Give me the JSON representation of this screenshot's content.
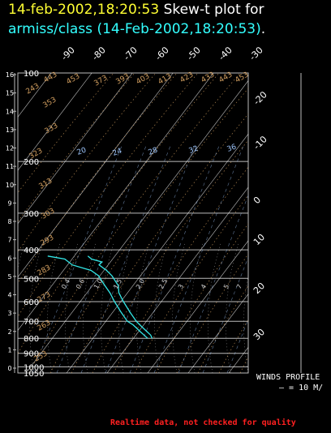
{
  "title": {
    "timestamp": "14-feb-2002,18:20:53",
    "text": "Skew-t plot for",
    "source": "armiss/class (14-Feb-2002,18:20:53)",
    "period": "."
  },
  "winds": {
    "label": "WINDS PROFILE",
    "scale": "— = 10 M/"
  },
  "footer": "Realtime data, not checked for quality",
  "colors": {
    "grid": "#bbbbbb",
    "isotherm": "#ffffff",
    "dry_adiabat": "#d4a060",
    "mixing_ratio": "#a0c8ff",
    "moist_adiabat": "#ffffff",
    "profile": "#33e8e8",
    "title_time": "#ffff33",
    "title_source": "#33ffff",
    "footer": "#ff2020"
  },
  "chart_data": {
    "type": "line",
    "title": "Skew-t plot for armiss/class (14-Feb-2002,18:20:53).",
    "pressure_levels": [
      100,
      200,
      300,
      400,
      500,
      600,
      700,
      800,
      900,
      1000,
      1050
    ],
    "height_km_ticks": [
      0,
      1,
      2,
      3,
      4,
      5,
      6,
      7,
      8,
      9,
      10,
      11,
      12,
      13,
      14,
      15,
      16
    ],
    "isotherm_labels": [
      "-90",
      "-80",
      "-70",
      "-60",
      "-50",
      "-40",
      "-30",
      "-20",
      "-10",
      "0",
      "10",
      "20",
      "30"
    ],
    "mixing_ratio_labels": [
      "20",
      "24",
      "28",
      "32",
      "36"
    ],
    "dry_adiabat_labels": [
      "443",
      "453",
      "373",
      "393",
      "403",
      "413",
      "423",
      "433",
      "443",
      "453",
      "353",
      "333",
      "323",
      "313",
      "303",
      "293",
      "283",
      "273",
      "263",
      "253",
      "243"
    ],
    "moist_adiabat_labels": [
      "0.4",
      "0.6",
      "1.0",
      "1.5",
      "2.0",
      "2.5",
      "3",
      "4",
      "5",
      "7"
    ],
    "ylim": [
      1050,
      100
    ],
    "series": [
      {
        "points": [
          {
            "p": 800,
            "t": 22
          },
          {
            "p": 780,
            "t": 21
          },
          {
            "p": 760,
            "t": 19
          },
          {
            "p": 740,
            "t": 17
          },
          {
            "p": 720,
            "t": 15
          },
          {
            "p": 700,
            "t": 13
          },
          {
            "p": 650,
            "t": 9
          },
          {
            "p": 600,
            "t": 5
          },
          {
            "p": 560,
            "t": 2
          },
          {
            "p": 530,
            "t": 1
          },
          {
            "p": 510,
            "t": -1
          },
          {
            "p": 490,
            "t": -3
          },
          {
            "p": 470,
            "t": -6
          },
          {
            "p": 450,
            "t": -10
          },
          {
            "p": 440,
            "t": -9
          },
          {
            "p": 430,
            "t": -14
          },
          {
            "p": 420,
            "t": -16
          }
        ]
      },
      {
        "points": [
          {
            "p": 800,
            "t": 20
          },
          {
            "p": 780,
            "t": 18
          },
          {
            "p": 760,
            "t": 16
          },
          {
            "p": 740,
            "t": 14
          },
          {
            "p": 720,
            "t": 12
          },
          {
            "p": 700,
            "t": 9
          },
          {
            "p": 650,
            "t": 5
          },
          {
            "p": 600,
            "t": 1
          },
          {
            "p": 560,
            "t": -2
          },
          {
            "p": 530,
            "t": -5
          },
          {
            "p": 510,
            "t": -7
          },
          {
            "p": 490,
            "t": -9
          },
          {
            "p": 470,
            "t": -13
          },
          {
            "p": 450,
            "t": -22
          },
          {
            "p": 430,
            "t": -26
          },
          {
            "p": 420,
            "t": -34
          }
        ]
      }
    ]
  }
}
